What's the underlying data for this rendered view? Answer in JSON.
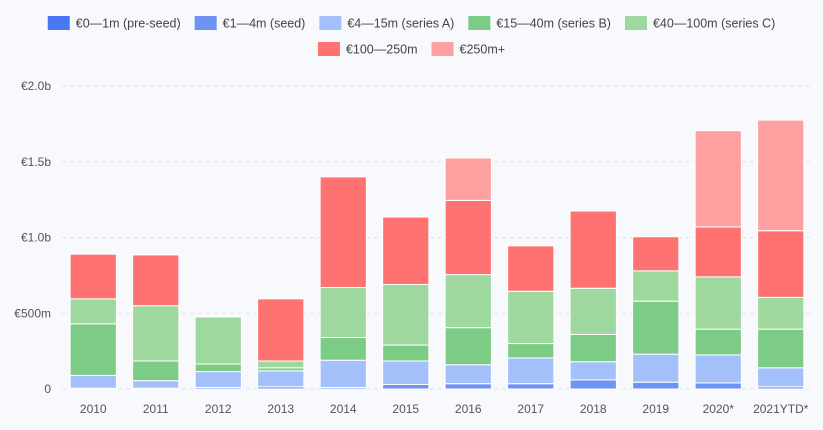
{
  "chart_data": {
    "type": "bar",
    "stacked": true,
    "categories": [
      "2010",
      "2011",
      "2012",
      "2013",
      "2014",
      "2015",
      "2016",
      "2017",
      "2018",
      "2019",
      "2020*",
      "2021YTD*"
    ],
    "ylim": [
      0,
      2000
    ],
    "yticks": [
      {
        "value": 0,
        "label": "0"
      },
      {
        "value": 500,
        "label": "€500m"
      },
      {
        "value": 1000,
        "label": "€1.0b"
      },
      {
        "value": 1500,
        "label": "€1.5b"
      },
      {
        "value": 2000,
        "label": "€2.0b"
      }
    ],
    "grid": true,
    "legend_position": "top",
    "series": [
      {
        "name": "€0—1m (pre-seed)",
        "color": "#4a78f5",
        "values": [
          0,
          0,
          0,
          0,
          0,
          0,
          0,
          0,
          0,
          0,
          0,
          0
        ]
      },
      {
        "name": "€1—4m (seed)",
        "color": "#6d93f5",
        "values": [
          5,
          5,
          10,
          15,
          10,
          30,
          35,
          35,
          60,
          45,
          40,
          15
        ]
      },
      {
        "name": "€4—15m (series A)",
        "color": "#a3c0fa",
        "values": [
          85,
          50,
          105,
          105,
          180,
          155,
          125,
          170,
          120,
          185,
          185,
          125
        ]
      },
      {
        "name": "€15—40m (series B)",
        "color": "#7ccc85",
        "values": [
          340,
          130,
          50,
          20,
          150,
          105,
          245,
          95,
          180,
          350,
          170,
          255
        ]
      },
      {
        "name": "€40—100m (series C)",
        "color": "#9ed89f",
        "values": [
          165,
          365,
          310,
          45,
          330,
          400,
          350,
          345,
          305,
          200,
          345,
          210
        ]
      },
      {
        "name": "€100—250m",
        "color": "#ff7272",
        "values": [
          295,
          335,
          0,
          410,
          730,
          445,
          490,
          300,
          510,
          225,
          330,
          440
        ]
      },
      {
        "name": "€250m+",
        "color": "#ffa0a0",
        "values": [
          0,
          0,
          0,
          0,
          0,
          0,
          280,
          0,
          0,
          0,
          635,
          730
        ]
      }
    ]
  }
}
